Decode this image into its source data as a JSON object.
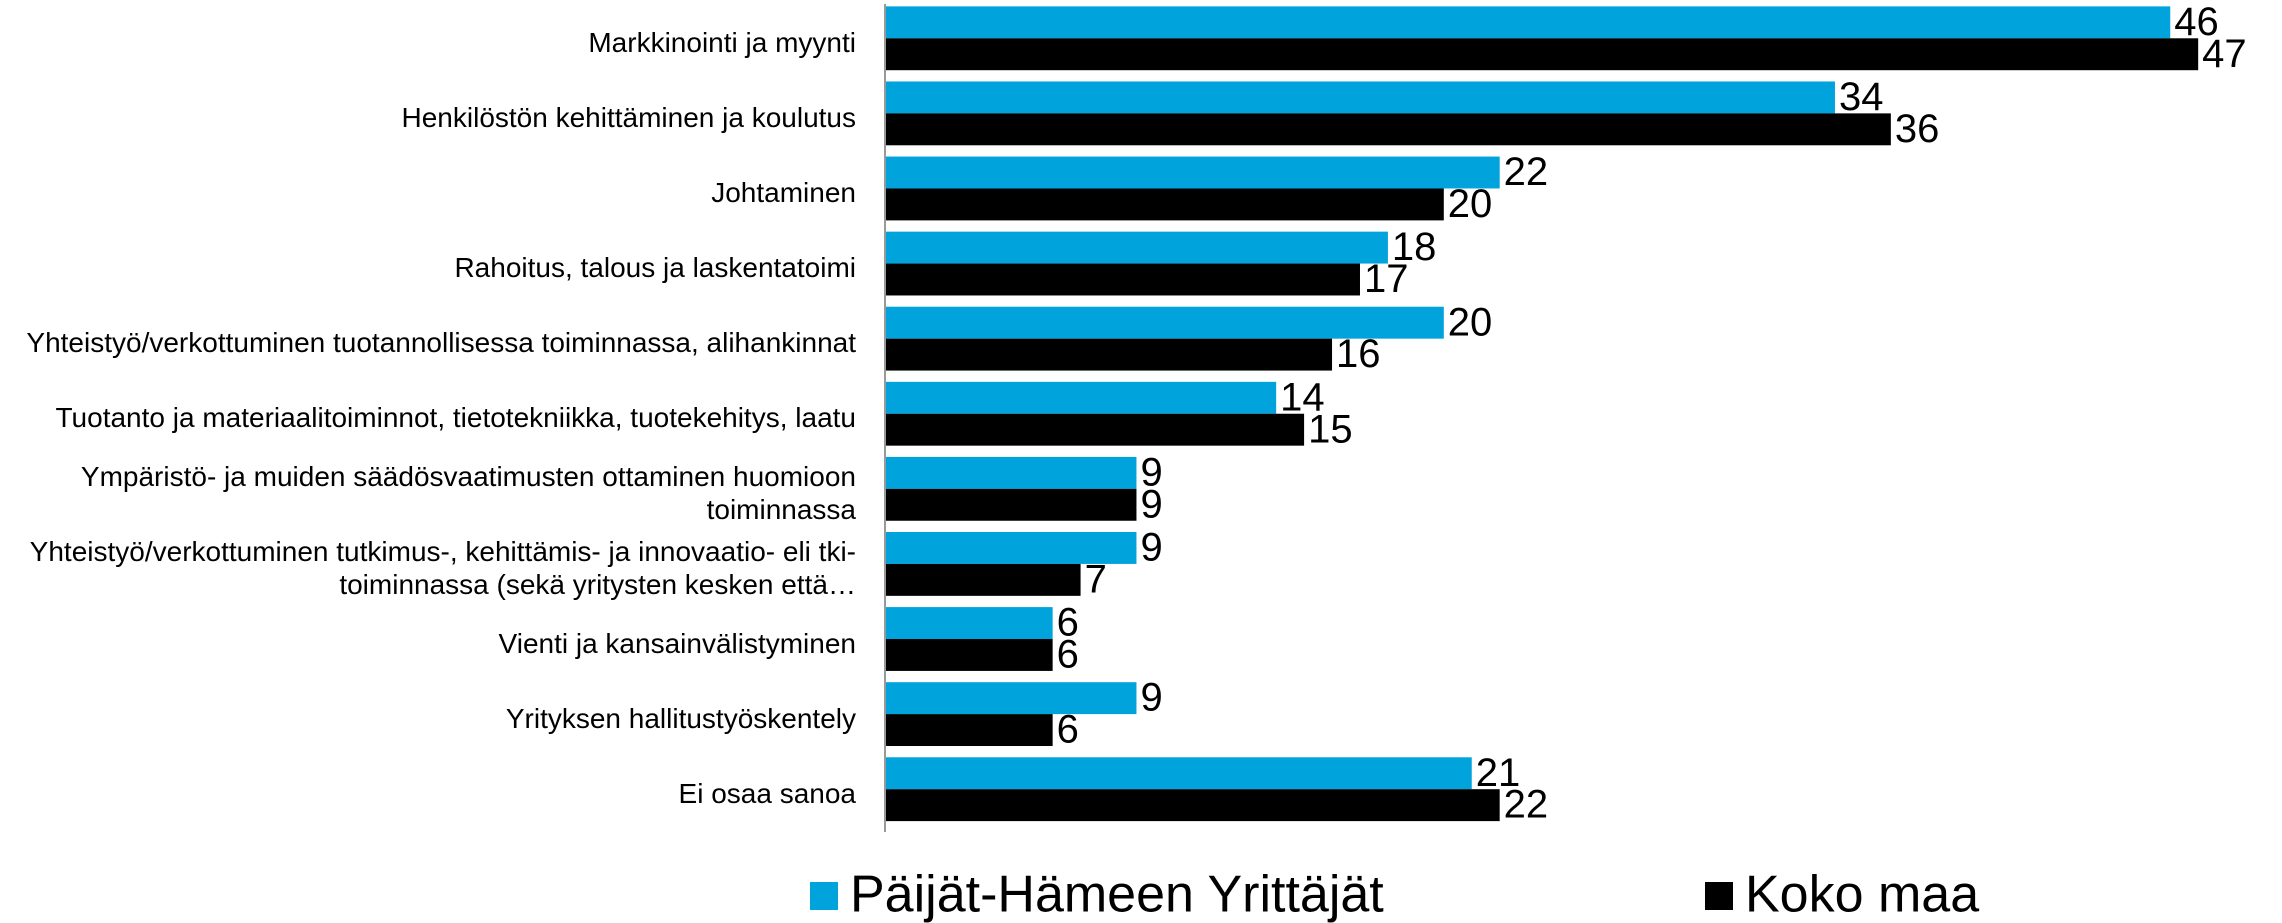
{
  "chart_data": {
    "type": "bar",
    "orientation": "horizontal",
    "categories": [
      "Markkinointi ja myynti",
      "Henkilöstön kehittäminen ja koulutus",
      "Johtaminen",
      "Rahoitus, talous ja laskentatoimi",
      "Yhteistyö/verkottuminen tuotannollisessa toiminnassa, alihankinnat",
      "Tuotanto ja materiaalitoiminnot, tietotekniikka, tuotekehitys, laatu",
      "Ympäristö- ja muiden säädösvaatimusten ottaminen huomioon toiminnassa",
      "Yhteistyö/verkottuminen tutkimus-, kehittämis- ja innovaatio- eli tki-toiminnassa (sekä yritysten kesken että…",
      "Vienti ja kansainvälistyminen",
      "Yrityksen hallitustyöskentely",
      "Ei osaa sanoa"
    ],
    "series": [
      {
        "name": "Päijät-Hämeen Yrittäjät",
        "color": "#00a3dc",
        "values": [
          46,
          34,
          22,
          18,
          20,
          14,
          9,
          9,
          6,
          9,
          21
        ]
      },
      {
        "name": "Koko maa",
        "color": "#000000",
        "values": [
          47,
          36,
          20,
          17,
          16,
          15,
          9,
          7,
          6,
          6,
          22
        ]
      }
    ],
    "xlim": [
      0,
      50
    ],
    "legend": "bottom"
  }
}
